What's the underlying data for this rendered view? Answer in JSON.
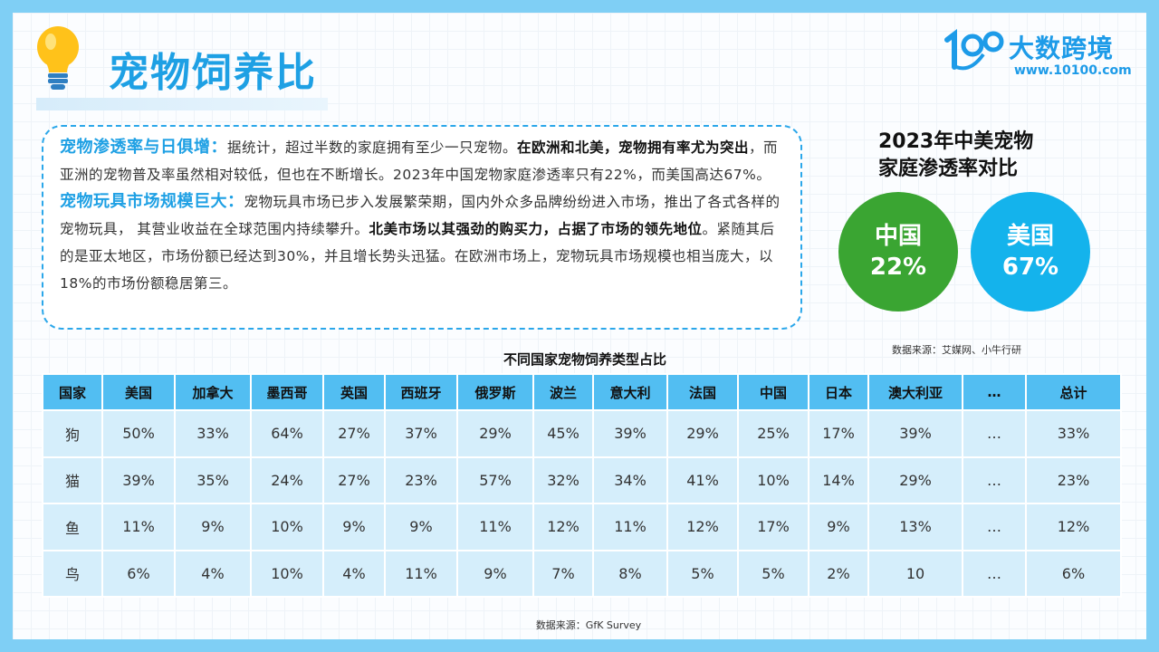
{
  "title": "宠物饲养比",
  "logo": {
    "name": "大数跨境",
    "url": "www.10100.com"
  },
  "paragraphs": {
    "p1_heading": "宠物渗透率与日俱增：",
    "p1_text_a": "据统计，超过半数的家庭拥有至少一只宠物。",
    "p1_bold": "在欧洲和北美，宠物拥有率尤为突出",
    "p1_text_b": "，而亚洲的宠物普及率虽然相对较低，但也在不断增长。2023年中国宠物家庭渗透率只有22%，而美国高达67%。",
    "p2_heading": "宠物玩具市场规模巨大：",
    "p2_text_a": "宠物玩具市场已步入发展繁荣期，国内外众多品牌纷纷进入市场，推出了各式各样的宠物玩具， 其营业收益在全球范围内持续攀升。",
    "p2_bold": "北美市场以其强劲的购买力，占据了市场的领先地位",
    "p2_text_b": "。紧随其后的是亚太地区，市场份额已经达到30%，并且增长势头迅猛。在欧洲市场上，宠物玩具市场规模也相当庞大，以18%的市场份额稳居第三。"
  },
  "comparison": {
    "title_line1": "2023年中美宠物",
    "title_line2": "家庭渗透率对比",
    "china": {
      "label": "中国",
      "value": "22%",
      "color": "#3aa532"
    },
    "usa": {
      "label": "美国",
      "value": "67%",
      "color": "#14b3ec"
    },
    "source": "数据来源：艾媒网、小牛行研"
  },
  "table": {
    "title": "不同国家宠物饲养类型占比",
    "headers": [
      "国家",
      "美国",
      "加拿大",
      "墨西哥",
      "英国",
      "西班牙",
      "俄罗斯",
      "波兰",
      "意大利",
      "法国",
      "中国",
      "日本",
      "澳大利亚",
      "…",
      "总计"
    ],
    "rows": [
      [
        "狗",
        "50%",
        "33%",
        "64%",
        "27%",
        "37%",
        "29%",
        "45%",
        "39%",
        "29%",
        "25%",
        "17%",
        "39%",
        "…",
        "33%"
      ],
      [
        "猫",
        "39%",
        "35%",
        "24%",
        "27%",
        "23%",
        "57%",
        "32%",
        "34%",
        "41%",
        "10%",
        "14%",
        "29%",
        "…",
        "23%"
      ],
      [
        "鱼",
        "11%",
        "9%",
        "10%",
        "9%",
        "9%",
        "11%",
        "12%",
        "11%",
        "12%",
        "17%",
        "9%",
        "13%",
        "…",
        "12%"
      ],
      [
        "鸟",
        "6%",
        "4%",
        "10%",
        "4%",
        "11%",
        "9%",
        "7%",
        "8%",
        "5%",
        "5%",
        "2%",
        "10",
        "…",
        "6%"
      ]
    ],
    "source": "数据来源：GfK Survey"
  }
}
